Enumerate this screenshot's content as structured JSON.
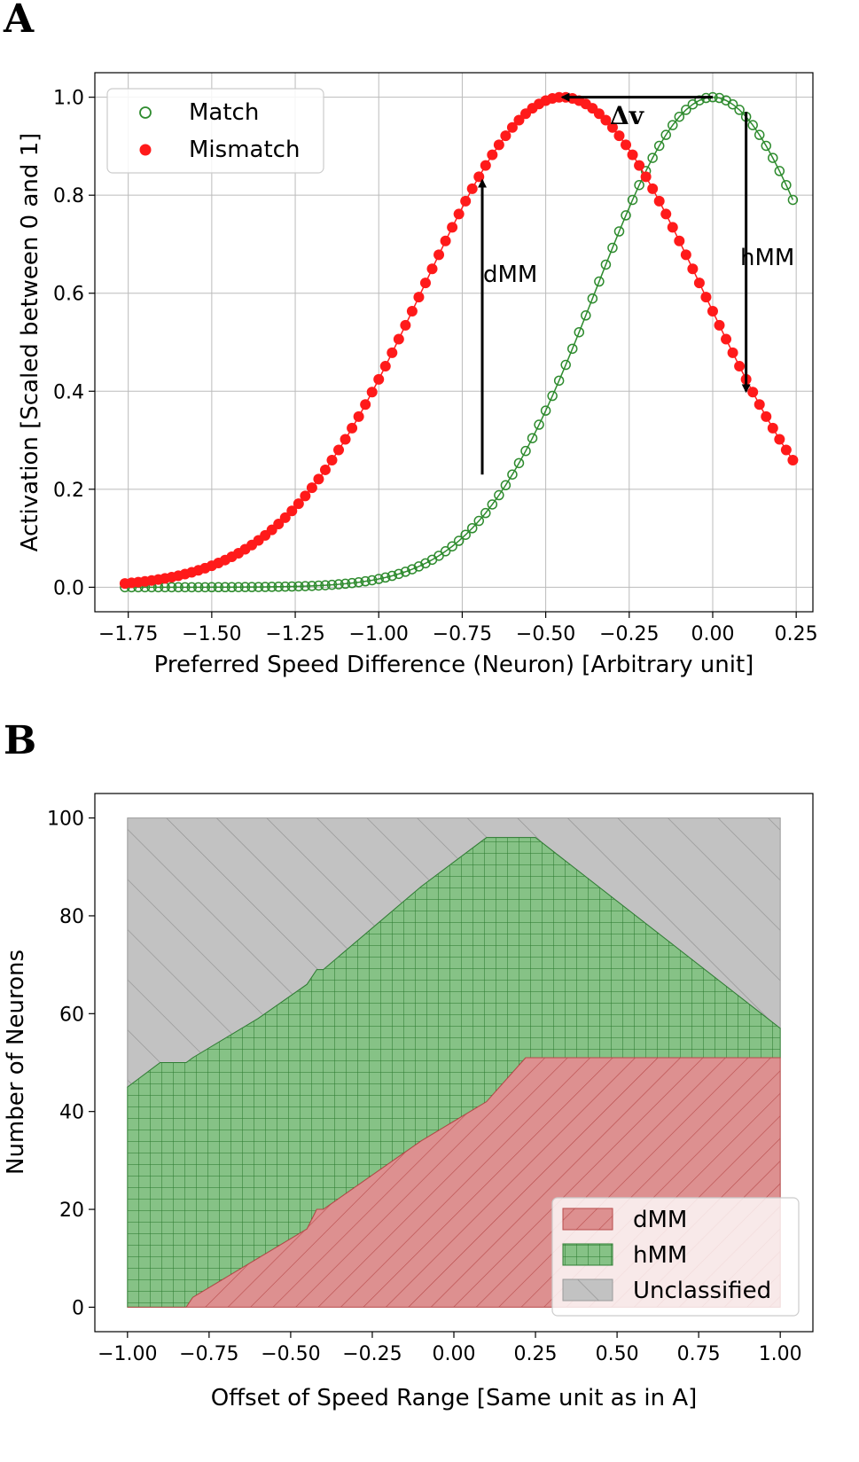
{
  "panel_a": {
    "letter": "A",
    "arrow_labels": {
      "delta_v": "Δv",
      "dmm": "dMM",
      "hmm": "hMM"
    }
  },
  "panel_b": {
    "letter": "B"
  },
  "colors": {
    "match": "#2e8b2e",
    "mismatch": "#ff1a1a",
    "dmm_fill": "#d98a8a",
    "dmm_hatch": "#c05050",
    "hmm_fill": "#7fbf7f",
    "hmm_hatch": "#2e7d32",
    "unclassified_fill": "#c0c0c0",
    "unclassified_hatch": "#888888",
    "grid": "#bbbbbb"
  },
  "chart_data": [
    {
      "type": "scatter",
      "xlabel": "Preferred Speed Difference (Neuron) [Arbitrary unit]",
      "ylabel": "Activation [Scaled between 0 and 1]",
      "xlim": [
        -1.85,
        0.3
      ],
      "ylim": [
        -0.05,
        1.05
      ],
      "xticks": [
        -1.75,
        -1.5,
        -1.25,
        -1.0,
        -0.75,
        -0.5,
        -0.25,
        0.0,
        0.25
      ],
      "xtick_labels": [
        "−1.75",
        "−1.50",
        "−1.25",
        "−1.00",
        "−0.75",
        "−0.50",
        "−0.25",
        "0.00",
        "0.25"
      ],
      "yticks": [
        0.0,
        0.2,
        0.4,
        0.6,
        0.8,
        1.0
      ],
      "ytick_labels": [
        "0.0",
        "0.2",
        "0.4",
        "0.6",
        "0.8",
        "1.0"
      ],
      "grid": true,
      "legend_position": "top-left",
      "series": [
        {
          "name": "Match",
          "marker": "open-circle",
          "center": 0.0,
          "sigma": 0.35,
          "x_range": [
            -1.76,
            0.24
          ],
          "points": 101
        },
        {
          "name": "Mismatch",
          "marker": "filled-circle",
          "center": -0.45,
          "sigma": 0.42,
          "x_range": [
            -1.76,
            0.24
          ],
          "points": 101
        }
      ],
      "annotations": [
        {
          "label": "Δv",
          "from": [
            0.0,
            1.0
          ],
          "to": [
            -0.45,
            1.0
          ]
        },
        {
          "label": "dMM",
          "from": [
            -0.69,
            0.23
          ],
          "to": [
            -0.69,
            0.83
          ]
        },
        {
          "label": "hMM",
          "from": [
            0.1,
            0.97
          ],
          "to": [
            0.1,
            0.4
          ]
        }
      ]
    },
    {
      "type": "area",
      "xlabel": "Offset of Speed Range [Same unit as in A]",
      "ylabel": "Number of Neurons",
      "xlim": [
        -1.1,
        1.1
      ],
      "ylim": [
        -5,
        105
      ],
      "xticks": [
        -1.0,
        -0.75,
        -0.5,
        -0.25,
        0.0,
        0.25,
        0.5,
        0.75,
        1.0
      ],
      "xtick_labels": [
        "−1.00",
        "−0.75",
        "−0.50",
        "−0.25",
        "0.00",
        "0.25",
        "0.50",
        "0.75",
        "1.00"
      ],
      "yticks": [
        0,
        20,
        40,
        60,
        80,
        100
      ],
      "ytick_labels": [
        "0",
        "20",
        "40",
        "60",
        "80",
        "100"
      ],
      "grid": false,
      "legend_position": "bottom-right",
      "x": [
        -1.0,
        -0.9,
        -0.82,
        -0.8,
        -0.6,
        -0.45,
        -0.42,
        -0.4,
        -0.1,
        0.1,
        0.22,
        0.25,
        1.0
      ],
      "series": [
        {
          "name": "dMM",
          "values": [
            0,
            0,
            0,
            2,
            10,
            16,
            20,
            20,
            34,
            42,
            51,
            51,
            51
          ]
        },
        {
          "name": "hMM",
          "values": [
            45,
            50,
            50,
            49,
            49,
            50,
            49,
            49,
            52,
            54,
            45,
            45,
            6
          ]
        },
        {
          "name": "Unclassified",
          "values": [
            55,
            50,
            50,
            49,
            41,
            34,
            31,
            31,
            14,
            4,
            4,
            4,
            43
          ]
        }
      ],
      "stacked": true,
      "total": 100
    }
  ]
}
